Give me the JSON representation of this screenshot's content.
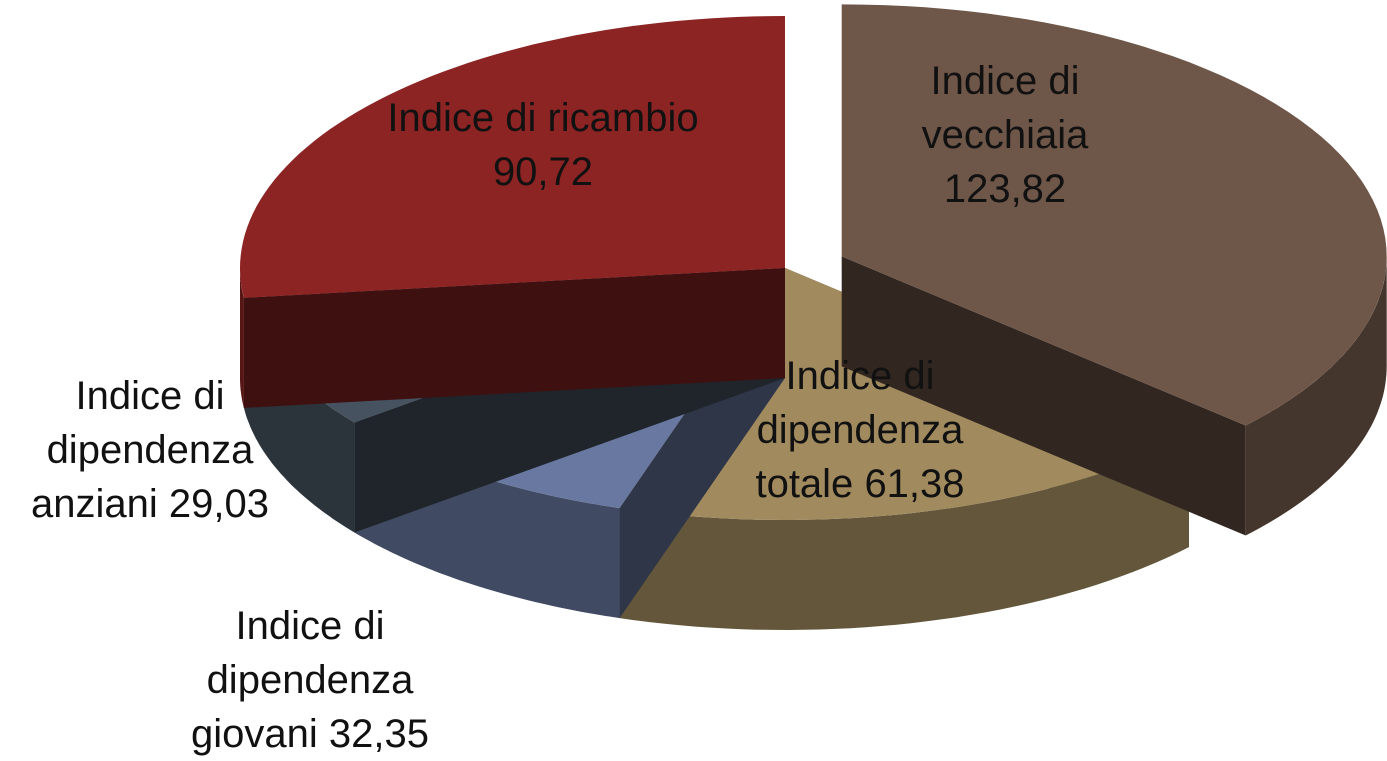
{
  "chart_data": {
    "type": "pie3d",
    "categories": [
      "Indice di vecchiaia",
      "Indice di dipendenza totale",
      "Indice di dipendenza giovani",
      "Indice di dipendenza anziani",
      "Indice di ricambio"
    ],
    "values": [
      123.82,
      61.38,
      32.35,
      29.03,
      90.72
    ],
    "value_labels": [
      "123,82",
      "61,38",
      "32,35",
      "29,03",
      "90,72"
    ],
    "colors": [
      "#6e5648",
      "#a08a5e",
      "#6878a0",
      "#46525f",
      "#8c2424"
    ],
    "exploded": [
      0
    ]
  }
}
